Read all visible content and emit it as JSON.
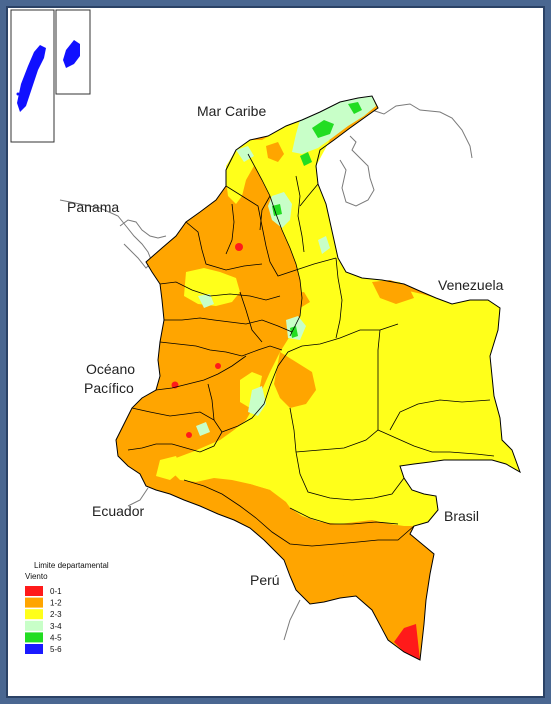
{
  "labels": {
    "mar_caribe": "Mar Caribe",
    "panama": "Panama",
    "venezuela": "Venezuela",
    "oceano_1": "Océano",
    "oceano_2": "Pacífico",
    "ecuador": "Ecuador",
    "brasil": "Brasil",
    "peru": "Perú"
  },
  "legend": {
    "title": "Limite departamental",
    "subtitle": "Viento",
    "items": [
      {
        "label": "0-1",
        "color": "#ff1a1a"
      },
      {
        "label": "1-2",
        "color": "#ffa500"
      },
      {
        "label": "2-3",
        "color": "#ffff1a"
      },
      {
        "label": "3-4",
        "color": "#c8ffc8"
      },
      {
        "label": "4-5",
        "color": "#22dd22"
      },
      {
        "label": "5-6",
        "color": "#1a1aff"
      }
    ]
  },
  "colors": {
    "frame": "#4a6791",
    "land_outline": "#777777",
    "dept_border": "#000000"
  }
}
